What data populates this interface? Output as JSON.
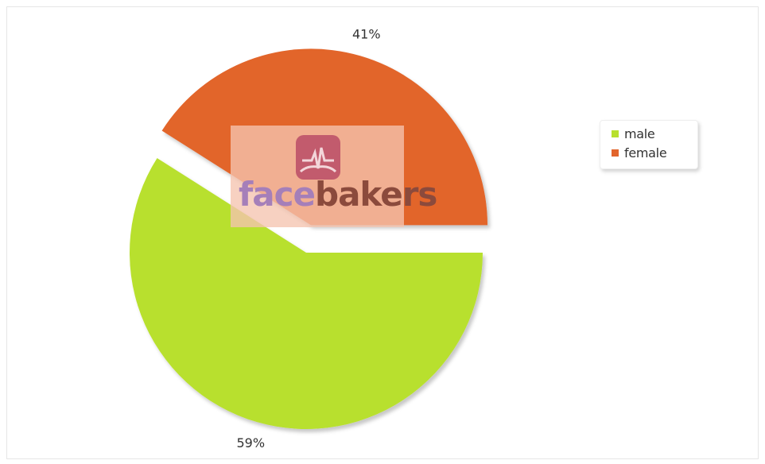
{
  "chart_data": {
    "type": "pie",
    "categories": [
      "male",
      "female"
    ],
    "values": [
      59,
      41
    ],
    "labels": [
      "59%",
      "41%"
    ],
    "colors": [
      "#b8e02e",
      "#e2652c"
    ],
    "exploded": "female",
    "title": "",
    "legend": {
      "placement": "right",
      "entries": [
        "male",
        "female"
      ]
    }
  },
  "watermark": {
    "brand_part1": "face",
    "brand_part2": "bakers",
    "icon": "heartbeat-bread-logo-icon"
  }
}
